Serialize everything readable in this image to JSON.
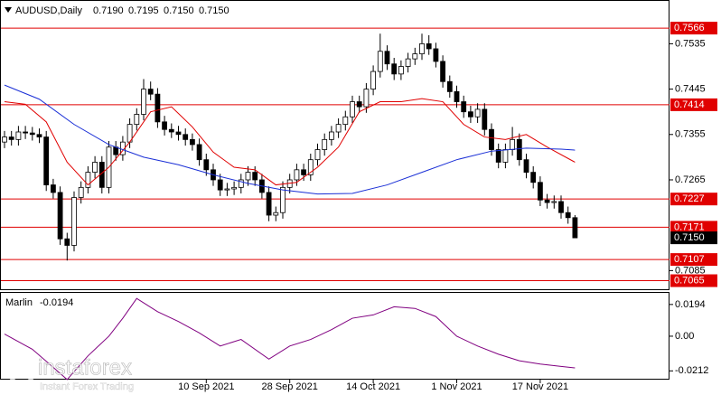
{
  "chart_data": [
    {
      "type": "candlestick",
      "title": "AUDUSD,Daily",
      "header_values": [
        "0.7190",
        "0.7195",
        "0.7150",
        "0.7150"
      ],
      "categories": [
        null,
        null,
        null,
        null,
        null,
        null,
        null,
        null,
        null,
        null,
        null,
        null,
        null,
        null,
        null,
        null,
        null,
        null,
        null,
        null,
        null,
        null,
        null,
        null,
        null,
        null,
        null,
        null,
        null,
        "10 Sep 2021",
        null,
        null,
        null,
        null,
        null,
        null,
        null,
        null,
        null,
        null,
        null,
        "28 Sep 2021",
        null,
        null,
        null,
        null,
        null,
        null,
        null,
        null,
        null,
        null,
        null,
        "14 Oct 2021",
        null,
        null,
        null,
        null,
        null,
        null,
        null,
        null,
        null,
        null,
        null,
        "1 Nov 2021",
        null,
        null,
        null,
        null,
        null,
        null,
        null,
        null,
        null,
        null,
        null,
        "17 Nov 2021",
        null,
        null,
        null,
        null,
        null
      ],
      "ohlc": [
        [
          0.734,
          0.7362,
          0.7328,
          0.735
        ],
        [
          0.735,
          0.7362,
          0.7333,
          0.7345
        ],
        [
          0.7345,
          0.7372,
          0.7333,
          0.736
        ],
        [
          0.736,
          0.7372,
          0.7346,
          0.7358
        ],
        [
          0.7358,
          0.737,
          0.7343,
          0.7355
        ],
        [
          0.7355,
          0.7367,
          0.7338,
          0.735
        ],
        [
          0.735,
          0.7362,
          0.7243,
          0.7255
        ],
        [
          0.7255,
          0.7267,
          0.7228,
          0.724
        ],
        [
          0.724,
          0.7252,
          0.7136,
          0.7148
        ],
        [
          0.7148,
          0.716,
          0.7105,
          0.7135
        ],
        [
          0.7135,
          0.7242,
          0.7123,
          0.723
        ],
        [
          0.723,
          0.7262,
          0.7218,
          0.725
        ],
        [
          0.725,
          0.7292,
          0.7238,
          0.728
        ],
        [
          0.728,
          0.7312,
          0.7268,
          0.73
        ],
        [
          0.73,
          0.7312,
          0.7238,
          0.725
        ],
        [
          0.725,
          0.7342,
          0.7238,
          0.733
        ],
        [
          0.733,
          0.7342,
          0.7303,
          0.7315
        ],
        [
          0.7315,
          0.7352,
          0.7303,
          0.734
        ],
        [
          0.734,
          0.7387,
          0.7328,
          0.7375
        ],
        [
          0.7375,
          0.7407,
          0.7363,
          0.7395
        ],
        [
          0.7395,
          0.7465,
          0.7383,
          0.7445
        ],
        [
          0.7445,
          0.746,
          0.7423,
          0.7435
        ],
        [
          0.7435,
          0.7447,
          0.7368,
          0.738
        ],
        [
          0.738,
          0.7392,
          0.7353,
          0.7365
        ],
        [
          0.7365,
          0.7377,
          0.7348,
          0.736
        ],
        [
          0.736,
          0.7372,
          0.7343,
          0.7355
        ],
        [
          0.7355,
          0.7367,
          0.7333,
          0.7345
        ],
        [
          0.7345,
          0.7357,
          0.7323,
          0.7335
        ],
        [
          0.7335,
          0.7347,
          0.7293,
          0.7305
        ],
        [
          0.7305,
          0.7317,
          0.7273,
          0.7285
        ],
        [
          0.7285,
          0.7297,
          0.7253,
          0.7265
        ],
        [
          0.7265,
          0.7277,
          0.7233,
          0.7245
        ],
        [
          0.7245,
          0.7259,
          0.7233,
          0.7247
        ],
        [
          0.7247,
          0.7262,
          0.7235,
          0.725
        ],
        [
          0.725,
          0.7277,
          0.7238,
          0.7265
        ],
        [
          0.7265,
          0.7292,
          0.7253,
          0.728
        ],
        [
          0.728,
          0.7292,
          0.7253,
          0.7265
        ],
        [
          0.7265,
          0.7277,
          0.7228,
          0.724
        ],
        [
          0.724,
          0.7252,
          0.7183,
          0.7195
        ],
        [
          0.7195,
          0.7212,
          0.7183,
          0.72
        ],
        [
          0.72,
          0.7262,
          0.7188,
          0.725
        ],
        [
          0.725,
          0.7277,
          0.7238,
          0.7265
        ],
        [
          0.7265,
          0.7297,
          0.7253,
          0.7285
        ],
        [
          0.7285,
          0.7297,
          0.7263,
          0.7275
        ],
        [
          0.7275,
          0.7317,
          0.7263,
          0.7305
        ],
        [
          0.7305,
          0.7337,
          0.7293,
          0.7325
        ],
        [
          0.7325,
          0.7357,
          0.7313,
          0.7345
        ],
        [
          0.7345,
          0.7372,
          0.7333,
          0.736
        ],
        [
          0.736,
          0.7387,
          0.7348,
          0.7375
        ],
        [
          0.7375,
          0.7402,
          0.7363,
          0.739
        ],
        [
          0.739,
          0.7432,
          0.7378,
          0.742
        ],
        [
          0.742,
          0.7432,
          0.7398,
          0.741
        ],
        [
          0.741,
          0.7457,
          0.7398,
          0.7445
        ],
        [
          0.7445,
          0.7492,
          0.7433,
          0.748
        ],
        [
          0.748,
          0.7555,
          0.7468,
          0.752
        ],
        [
          0.752,
          0.7532,
          0.7483,
          0.7495
        ],
        [
          0.7495,
          0.7507,
          0.7463,
          0.7475
        ],
        [
          0.7475,
          0.7502,
          0.7463,
          0.749
        ],
        [
          0.749,
          0.7517,
          0.7478,
          0.7505
        ],
        [
          0.7505,
          0.7527,
          0.7493,
          0.7515
        ],
        [
          0.7515,
          0.7555,
          0.7503,
          0.7535
        ],
        [
          0.7535,
          0.7552,
          0.7513,
          0.7525
        ],
        [
          0.7525,
          0.7537,
          0.7488,
          0.75
        ],
        [
          0.75,
          0.7512,
          0.7448,
          0.746
        ],
        [
          0.746,
          0.7472,
          0.7428,
          0.744
        ],
        [
          0.744,
          0.7452,
          0.7408,
          0.742
        ],
        [
          0.742,
          0.7432,
          0.7388,
          0.74
        ],
        [
          0.74,
          0.7412,
          0.7378,
          0.739
        ],
        [
          0.739,
          0.7417,
          0.7378,
          0.7405
        ],
        [
          0.7405,
          0.7417,
          0.7353,
          0.7365
        ],
        [
          0.7365,
          0.7377,
          0.7313,
          0.7325
        ],
        [
          0.7325,
          0.7337,
          0.7288,
          0.73
        ],
        [
          0.73,
          0.7337,
          0.7288,
          0.7325
        ],
        [
          0.7325,
          0.737,
          0.7313,
          0.7345
        ],
        [
          0.7345,
          0.7357,
          0.7293,
          0.7305
        ],
        [
          0.7305,
          0.7317,
          0.7268,
          0.728
        ],
        [
          0.728,
          0.7292,
          0.7248,
          0.726
        ],
        [
          0.726,
          0.7272,
          0.7213,
          0.7225
        ],
        [
          0.7225,
          0.7237,
          0.7208,
          0.722
        ],
        [
          0.722,
          0.7234,
          0.7208,
          0.7222
        ],
        [
          0.7222,
          0.7234,
          0.7188,
          0.72
        ],
        [
          0.72,
          0.7212,
          0.7178,
          0.719
        ],
        [
          0.719,
          0.7195,
          0.715,
          0.715
        ]
      ],
      "series": [
        {
          "color": "#e00000",
          "x": [
            0,
            3,
            6,
            9,
            12,
            15,
            18,
            21,
            24,
            27,
            30,
            33,
            36,
            39,
            42,
            45,
            48,
            51,
            54,
            57,
            60,
            63,
            66,
            69,
            72,
            75,
            78,
            82
          ],
          "values": [
            0.742,
            0.7415,
            0.738,
            0.73,
            0.7255,
            0.729,
            0.734,
            0.74,
            0.741,
            0.737,
            0.732,
            0.729,
            0.7285,
            0.7255,
            0.726,
            0.729,
            0.733,
            0.74,
            0.742,
            0.742,
            0.7426,
            0.742,
            0.7375,
            0.735,
            0.7345,
            0.7355,
            0.733,
            0.73
          ]
        },
        {
          "color": "#1a2fd6",
          "x": [
            0,
            5,
            10,
            15,
            20,
            25,
            30,
            35,
            40,
            45,
            50,
            55,
            60,
            65,
            70,
            75,
            80,
            82
          ],
          "values": [
            0.7453,
            0.7425,
            0.7375,
            0.7335,
            0.731,
            0.7295,
            0.7275,
            0.7258,
            0.7245,
            0.7237,
            0.7238,
            0.7255,
            0.728,
            0.7305,
            0.7322,
            0.7328,
            0.7326,
            0.7324
          ]
        }
      ],
      "levels": [
        0.7566,
        0.7414,
        0.7227,
        0.7171,
        0.7107,
        0.7065
      ],
      "level_color": "#e00000",
      "current": {
        "value": 0.715,
        "label": "0.7150"
      },
      "ylim": [
        0.7048,
        0.762
      ],
      "yticks": [
        0.7535,
        0.7445,
        0.7355,
        0.7265,
        0.7085
      ]
    },
    {
      "type": "line",
      "title": "Marlin",
      "current": -0.0194,
      "series": [
        {
          "color": "#800080",
          "x": [
            0,
            4,
            7,
            9,
            12,
            15,
            17,
            19,
            22,
            25,
            28,
            31,
            34,
            38,
            41,
            44,
            47,
            50,
            53,
            56,
            59,
            62,
            65,
            68,
            71,
            74,
            77,
            80,
            82
          ],
          "values": [
            0.0013,
            -0.008,
            -0.019,
            -0.0265,
            -0.012,
            0.0,
            0.011,
            0.0231,
            0.015,
            0.009,
            0.002,
            -0.006,
            -0.002,
            -0.014,
            -0.006,
            -0.002,
            0.004,
            0.011,
            0.013,
            0.018,
            0.017,
            0.012,
            0.0,
            -0.006,
            -0.011,
            -0.015,
            -0.017,
            -0.0185,
            -0.0194
          ]
        }
      ],
      "ylim": [
        -0.026,
        0.0265
      ],
      "yticks": [
        0.0194,
        {
          "value": 0,
          "label": "0.00"
        },
        -0.0212
      ]
    }
  ],
  "watermark": {
    "brand": "instaforex",
    "tagline": "Instant Forex Trading"
  }
}
